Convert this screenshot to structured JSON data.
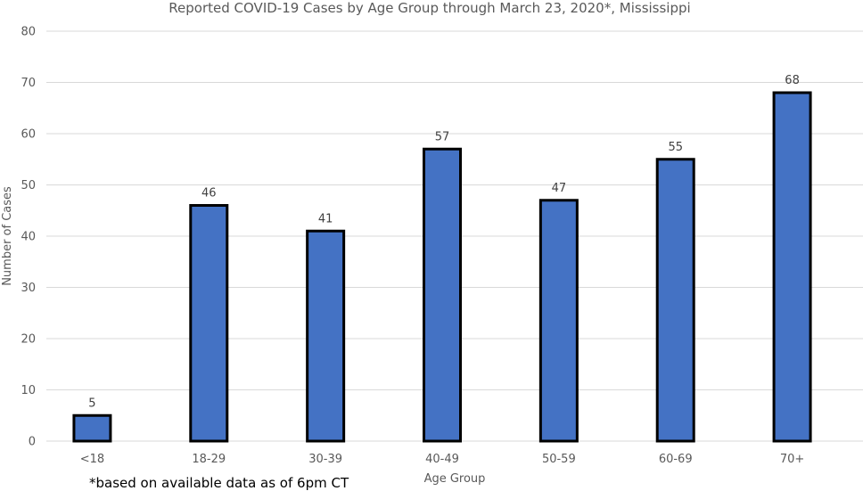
{
  "chart_data": {
    "type": "bar",
    "title": "Reported COVID-19 Cases by Age Group through March 23, 2020*, Mississippi",
    "xlabel": "Age Group",
    "ylabel": "Number of Cases",
    "categories": [
      "<18",
      "18-29",
      "30-39",
      "40-49",
      "50-59",
      "60-69",
      "70+"
    ],
    "values": [
      5,
      46,
      41,
      57,
      47,
      55,
      68
    ],
    "data_labels": [
      "5",
      "46",
      "41",
      "57",
      "47",
      "55",
      "68"
    ],
    "ylim": [
      0,
      80
    ],
    "yticks": [
      "0",
      "10",
      "20",
      "30",
      "40",
      "50",
      "60",
      "70",
      "80"
    ],
    "grid": true,
    "legend": "none",
    "bar_color": "#4472c4",
    "bar_outline_color": "#000000"
  },
  "footnote": "*based on available data as of 6pm CT"
}
